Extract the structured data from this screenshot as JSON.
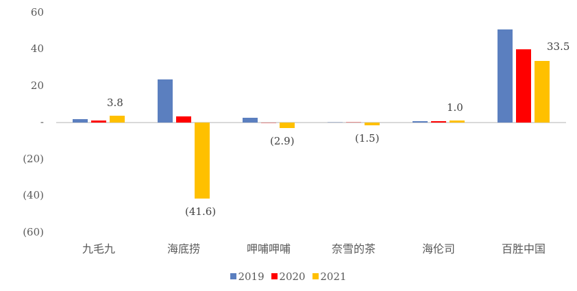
{
  "chart_data": {
    "type": "bar",
    "title": "",
    "xlabel": "",
    "ylabel": "",
    "ylim": [
      -60,
      60
    ],
    "yticks": [
      60,
      40,
      20,
      0,
      -20,
      -40,
      -60
    ],
    "ytick_labels": [
      "60",
      "40",
      "20",
      "-",
      "(20)",
      "(40)",
      "(60)"
    ],
    "grid": false,
    "legend_position": "bottom",
    "categories": [
      "九毛九",
      "海底捞",
      "呷哺呷哺",
      "奈雪的茶",
      "海伦司",
      "百胜中国"
    ],
    "series": [
      {
        "name": "2019",
        "color": "#5B7FBF",
        "values": [
          2.0,
          23.4,
          2.5,
          0.1,
          0.8,
          50.9
        ]
      },
      {
        "name": "2020",
        "color": "#FF0000",
        "values": [
          1.0,
          3.2,
          -0.1,
          0.1,
          0.8,
          40.1
        ]
      },
      {
        "name": "2021",
        "color": "#FFC000",
        "values": [
          3.8,
          -41.6,
          -2.9,
          -1.5,
          1.0,
          33.5
        ]
      }
    ],
    "data_labels": [
      {
        "category": "九毛九",
        "series": "2021",
        "text": "3.8"
      },
      {
        "category": "海底捞",
        "series": "2021",
        "text": "(41.6)"
      },
      {
        "category": "呷哺呷哺",
        "series": "2021",
        "text": "(2.9)"
      },
      {
        "category": "奈雪的茶",
        "series": "2021",
        "text": "(1.5)"
      },
      {
        "category": "海伦司",
        "series": "2021",
        "text": "1.0"
      },
      {
        "category": "百胜中国",
        "series": "2021",
        "text": "33.5"
      }
    ]
  },
  "legend": {
    "items": [
      "2019",
      "2020",
      "2021"
    ]
  }
}
